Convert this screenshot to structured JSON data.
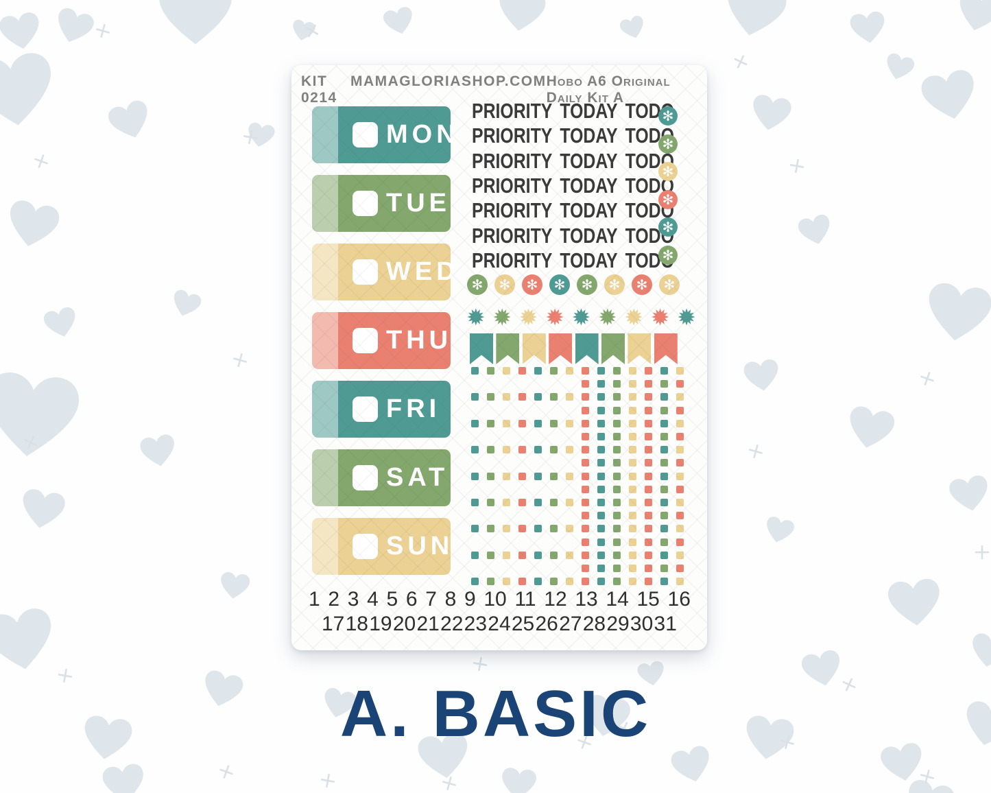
{
  "background": {
    "pattern": "hearts",
    "heart_color": "#dfe6eb",
    "plus_color": "#d9e1e7",
    "base_color": "#fefefe"
  },
  "sheet": {
    "header": {
      "kit_code": "KIT 0214",
      "shop_url": "MAMAGLORIASHOP.COM",
      "kit_name": "Hobo A6 Original Daily Kit A"
    },
    "palette": {
      "teal": "#4f9b94",
      "green": "#83a76c",
      "yellow": "#ebd193",
      "coral": "#ea8170"
    },
    "text_ink": "#3a3a3a",
    "header_ink": "#818181",
    "day_stickers": [
      {
        "label": "MON",
        "color": "teal"
      },
      {
        "label": "TUE",
        "color": "green"
      },
      {
        "label": "WED",
        "color": "yellow"
      },
      {
        "label": "THU",
        "color": "coral"
      },
      {
        "label": "FRI",
        "color": "teal"
      },
      {
        "label": "SAT",
        "color": "green"
      },
      {
        "label": "SUN",
        "color": "yellow"
      }
    ],
    "priority_label": "PRIORITY TODAY TODO",
    "priority_row_count": 7,
    "asterisk_column": [
      "teal",
      "green",
      "yellow",
      "coral",
      "teal",
      "green"
    ],
    "asterisk_row": [
      "green",
      "yellow",
      "coral",
      "teal",
      "green",
      "yellow",
      "coral",
      "yellow"
    ],
    "starburst_row": [
      "teal",
      "green",
      "yellow",
      "coral",
      "teal",
      "green",
      "yellow",
      "coral",
      "teal"
    ],
    "flag_row": [
      "teal",
      "green",
      "yellow",
      "coral",
      "teal",
      "green",
      "yellow",
      "coral"
    ],
    "checkbox_grid_left": {
      "rows": 9,
      "columns": [
        "teal",
        "green",
        "yellow",
        "coral",
        "teal",
        "green",
        "yellow"
      ]
    },
    "checkbox_grid_right": {
      "rows": 17,
      "columns_odd_rows": [
        "coral",
        "teal",
        "green",
        "yellow",
        "coral",
        "teal",
        "yellow"
      ],
      "columns_even_rows": [
        "coral",
        "teal",
        "green",
        "yellow",
        "coral",
        "green",
        "coral"
      ]
    },
    "dates_row1": [
      "1",
      "2",
      "3",
      "4",
      "5",
      "6",
      "7",
      "8",
      "9",
      "10",
      "11",
      "12",
      "13",
      "14",
      "15",
      "16"
    ],
    "dates_row2": [
      "17",
      "18",
      "19",
      "20",
      "21",
      "22",
      "23",
      "24",
      "25",
      "26",
      "27",
      "28",
      "29",
      "30",
      "31"
    ]
  },
  "caption": {
    "label": "A. BASIC",
    "color": "#1b4476"
  }
}
